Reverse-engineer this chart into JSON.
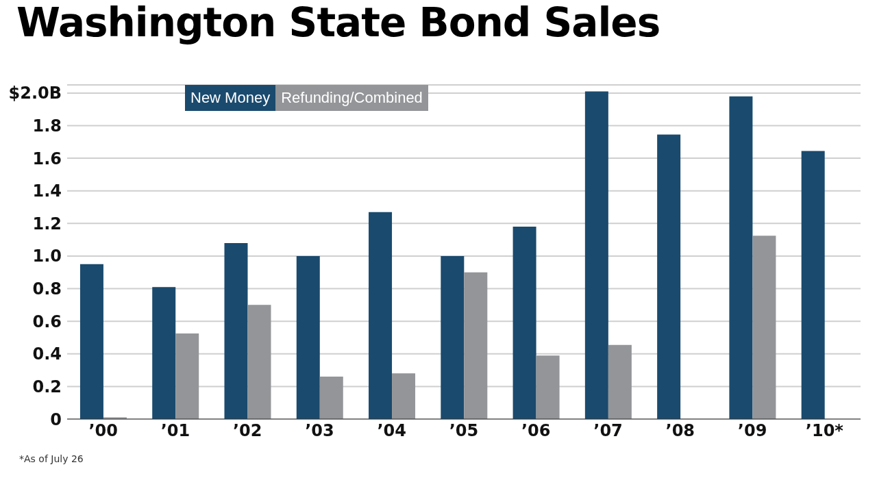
{
  "chart_data": {
    "type": "bar",
    "title": "Washington State Bond Sales",
    "categories": [
      "’00",
      "’01",
      "’02",
      "’03",
      "’04",
      "’05",
      "’06",
      "’07",
      "’08",
      "’09",
      "’10*"
    ],
    "series": [
      {
        "name": "New Money",
        "color": "#1a4a6e",
        "values": [
          0.95,
          0.81,
          1.08,
          1.0,
          1.27,
          1.0,
          1.18,
          2.01,
          1.745,
          1.98,
          1.645
        ]
      },
      {
        "name": "Refunding/Combined",
        "color": "#939598",
        "values": [
          0.01,
          0.525,
          0.7,
          0.26,
          0.28,
          0.9,
          0.39,
          0.455,
          null,
          1.125,
          null
        ]
      }
    ],
    "ylim": [
      0,
      2.05
    ],
    "yticks": [
      0,
      0.2,
      0.4,
      0.6,
      0.8,
      {
        "value": 1.0,
        "label": "1.0"
      },
      1.2,
      1.4,
      1.6,
      1.8,
      {
        "value": 2.0,
        "label": "$2.0B"
      }
    ],
    "grid": "y",
    "legend": "top left",
    "annotations": [
      "*As of July 26"
    ]
  }
}
